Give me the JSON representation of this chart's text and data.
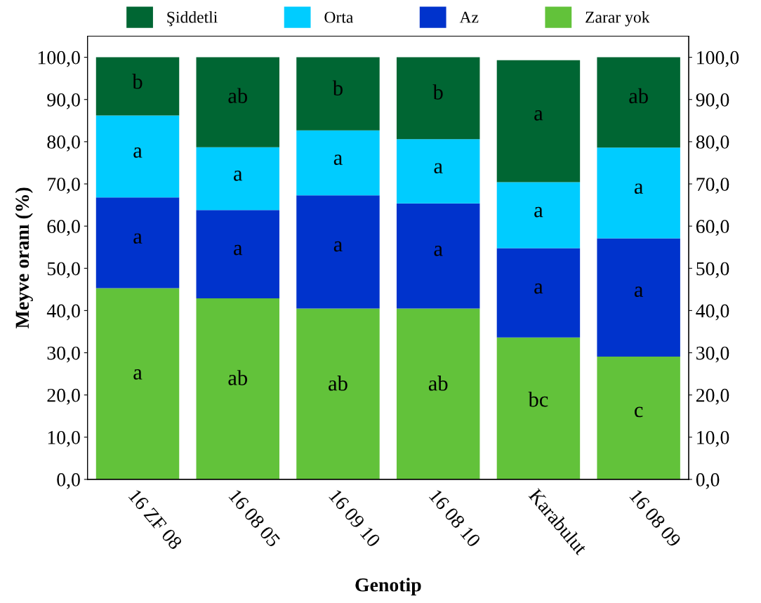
{
  "chart_data": {
    "type": "bar",
    "stacked": true,
    "xlabel": "Genotip",
    "ylabel": "Meyve oranı (%)",
    "categories": [
      "16 ZF 08",
      "16 08 05",
      "16 09 10",
      "16 08 10",
      "Karabulut",
      "16 08 09"
    ],
    "series": [
      {
        "name": "Zarar yok",
        "color": "#62c23a",
        "values": [
          45.3,
          42.9,
          40.5,
          40.5,
          33.6,
          29.1
        ]
      },
      {
        "name": "Az",
        "color": "#0033cc",
        "values": [
          21.5,
          20.9,
          26.8,
          24.9,
          21.2,
          28.0
        ]
      },
      {
        "name": "Orta",
        "color": "#00ccff",
        "values": [
          19.4,
          14.9,
          15.4,
          15.2,
          15.6,
          21.5
        ]
      },
      {
        "name": "Şiddetli",
        "color": "#006633",
        "values": [
          13.8,
          21.3,
          17.3,
          19.4,
          28.9,
          21.4
        ]
      }
    ],
    "ylim": [
      0,
      105
    ],
    "yticks": [
      {
        "value": 0,
        "label": "0,0"
      },
      {
        "value": 10,
        "label": "10,0"
      },
      {
        "value": 20,
        "label": "20,0"
      },
      {
        "value": 30,
        "label": "30,0"
      },
      {
        "value": 40,
        "label": "40,0"
      },
      {
        "value": 50,
        "label": "50,0"
      },
      {
        "value": 60,
        "label": "60,0"
      },
      {
        "value": 70,
        "label": "70,0"
      },
      {
        "value": 80,
        "label": "80,0"
      },
      {
        "value": 90,
        "label": "90,0"
      },
      {
        "value": 100,
        "label": "100,0"
      }
    ],
    "y2lim": [
      0,
      105
    ],
    "y2ticks": [
      {
        "value": 0,
        "label": "0,0"
      },
      {
        "value": 10,
        "label": "10,0"
      },
      {
        "value": 20,
        "label": "20,0"
      },
      {
        "value": 30,
        "label": "30,0"
      },
      {
        "value": 40,
        "label": "40,0"
      },
      {
        "value": 50,
        "label": "50,0"
      },
      {
        "value": 60,
        "label": "60,0"
      },
      {
        "value": 70,
        "label": "70,0"
      },
      {
        "value": 80,
        "label": "80,0"
      },
      {
        "value": 90,
        "label": "90,0"
      },
      {
        "value": 100,
        "label": "100,0"
      }
    ],
    "grid": false,
    "legend": "top",
    "annotations": [
      "a",
      "a",
      "a",
      "b",
      "ab",
      "a",
      "a",
      "ab",
      "ab",
      "a",
      "a",
      "b",
      "ab",
      "a",
      "a",
      "b",
      "bc",
      "a",
      "a",
      "a",
      "c",
      "a",
      "a",
      "ab"
    ]
  }
}
